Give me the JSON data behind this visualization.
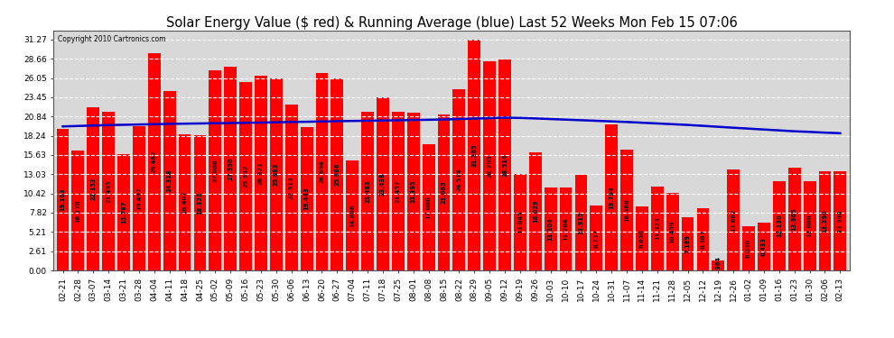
{
  "title": "Solar Energy Value ($ red) & Running Average (blue) Last 52 Weeks Mon Feb 15 07:06",
  "copyright": "Copyright 2010 Cartronics.com",
  "bar_color": "#ff0000",
  "avg_line_color": "#0000cc",
  "background_color": "#ffffff",
  "plot_bg_color": "#d8d8d8",
  "grid_color": "#ffffff",
  "categories": [
    "02-21",
    "02-28",
    "03-07",
    "03-14",
    "03-21",
    "03-28",
    "04-04",
    "04-11",
    "04-18",
    "04-25",
    "05-02",
    "05-09",
    "05-16",
    "05-23",
    "05-30",
    "06-06",
    "06-13",
    "06-20",
    "06-27",
    "07-04",
    "07-11",
    "07-18",
    "07-25",
    "08-01",
    "08-08",
    "08-15",
    "08-22",
    "08-29",
    "09-05",
    "09-12",
    "09-19",
    "09-26",
    "10-03",
    "10-10",
    "10-17",
    "10-24",
    "10-31",
    "11-07",
    "11-14",
    "11-21",
    "11-28",
    "12-05",
    "12-12",
    "12-19",
    "12-26",
    "01-02",
    "01-09",
    "01-16",
    "01-23",
    "01-30",
    "02-06",
    "02-13"
  ],
  "values": [
    19.163,
    16.178,
    22.152,
    21.495,
    15.787,
    19.497,
    29.467,
    24.318,
    18.407,
    18.323,
    27.088,
    27.55,
    25.532,
    26.321,
    25.983,
    22.513,
    19.443,
    26.694,
    25.986,
    14.886,
    21.483,
    23.438,
    21.457,
    21.395,
    17.088,
    21.065,
    24.514,
    31.265,
    28.295,
    28.514,
    13.045,
    16.029,
    11.204,
    11.284,
    12.915,
    8.737,
    19.794,
    16.368,
    8.658,
    11.323,
    10.459,
    7.189,
    8.383,
    1.364,
    13.662,
    6.03,
    6.433,
    12.13,
    13.965,
    12.08,
    13.39,
    13.39
  ],
  "bar_labels": [
    "19.163",
    "16.178",
    "22.152",
    "21.495",
    "15.787",
    "19.497",
    "29.467",
    "24.318",
    "18.407",
    "18.323",
    "27.088",
    "27.550",
    "25.532",
    "26.321",
    "25.983",
    "22.513",
    "19.443",
    "26.694",
    "25.986",
    "14.886",
    "21.483",
    "23.438",
    "21.457",
    "21.395",
    "17.088",
    "21.065",
    "24.514",
    "31.265",
    "28.295",
    "28.514",
    "13.045",
    "16.029",
    "11.204",
    "11.284",
    "12.915",
    "8.737",
    "19.794",
    "16.368",
    "8.658",
    "11.323",
    "10.459",
    "7.189",
    "8.383",
    "1.364",
    "13.662",
    "6.030",
    "6.433",
    "12.130",
    "13.965",
    "12.080",
    "13.390",
    "13.390"
  ],
  "avg_values": [
    19.5,
    19.56,
    19.62,
    19.68,
    19.72,
    19.76,
    19.8,
    19.84,
    19.87,
    19.9,
    19.93,
    19.96,
    19.99,
    20.02,
    20.06,
    20.1,
    20.13,
    20.17,
    20.21,
    20.24,
    20.27,
    20.3,
    20.33,
    20.37,
    20.4,
    20.44,
    20.5,
    20.56,
    20.62,
    20.68,
    20.65,
    20.58,
    20.5,
    20.42,
    20.34,
    20.26,
    20.18,
    20.1,
    20.0,
    19.9,
    19.8,
    19.7,
    19.58,
    19.45,
    19.32,
    19.2,
    19.08,
    18.96,
    18.84,
    18.76,
    18.66,
    18.58
  ],
  "yticks": [
    0.0,
    2.61,
    5.21,
    7.82,
    10.42,
    13.03,
    15.63,
    18.24,
    20.84,
    23.45,
    26.05,
    28.66,
    31.27
  ],
  "ylim": [
    0,
    32.5
  ],
  "title_fontsize": 10.5,
  "tick_fontsize": 6.5,
  "label_fontsize": 4.8,
  "bar_width": 0.82
}
